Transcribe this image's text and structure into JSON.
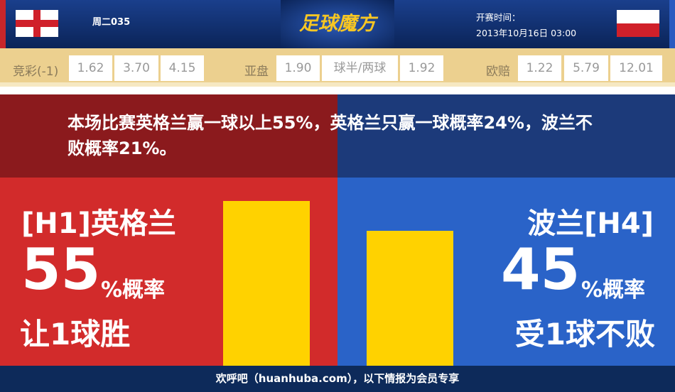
{
  "header": {
    "match_no": "周二035",
    "logo": "足球魔方",
    "kickoff_label": "开赛时间：",
    "kickoff_time": "2013年10月16日 03:00"
  },
  "odds": {
    "jingcai": {
      "label": "竞彩(-1)",
      "values": [
        "1.62",
        "3.70",
        "4.15"
      ]
    },
    "yapan": {
      "label": "亚盘",
      "values": [
        "1.90",
        "球半/两球",
        "1.92"
      ]
    },
    "oupei": {
      "label": "欧赔",
      "values": [
        "1.22",
        "5.79",
        "12.01"
      ]
    }
  },
  "summary": "本场比赛英格兰赢一球以上55%，英格兰只赢一球概率24%，波兰不败概率21%。",
  "home": {
    "name": "[H1]英格兰",
    "pct": "55",
    "pct_label": "%概率",
    "result": "让1球胜",
    "bar_value": 55,
    "color": "#d22b2b"
  },
  "away": {
    "name": "波兰[H4]",
    "pct": "45",
    "pct_label": "%概率",
    "result": "受1球不败",
    "bar_value": 45,
    "color": "#2a63c8"
  },
  "footer": "欢呼吧（huanhuba.com），以下情报为会员专享"
}
